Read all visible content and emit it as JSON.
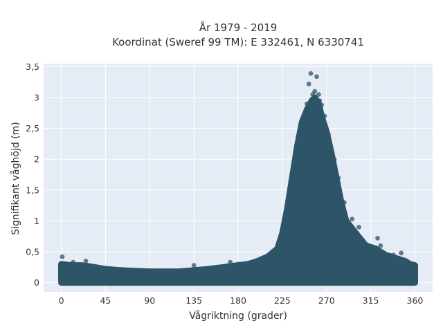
{
  "chart_data": {
    "type": "scatter",
    "title": "År 1979 - 2019",
    "subtitle": "Koordinat (Sweref 99 TM): E 332461, N 6330741",
    "xlabel": "Vågriktning (grader)",
    "ylabel": "Signifikant våghöjd (m)",
    "xlim": [
      -18,
      378
    ],
    "ylim": [
      -0.15,
      3.55
    ],
    "x_ticks": [
      0,
      45,
      90,
      135,
      180,
      225,
      270,
      315,
      360
    ],
    "x_tick_labels": [
      "0",
      "45",
      "90",
      "135",
      "180",
      "225",
      "270",
      "315",
      "360"
    ],
    "y_ticks": [
      0,
      0.5,
      1,
      1.5,
      2,
      2.5,
      3,
      3.5
    ],
    "y_tick_labels": [
      "0",
      "0,5",
      "1",
      "1,5",
      "2",
      "2,5",
      "3",
      "3,5"
    ],
    "grid": true,
    "marker_color": "#2e5468",
    "envelope": {
      "x": [
        0,
        10,
        20,
        30,
        45,
        60,
        75,
        90,
        105,
        120,
        135,
        150,
        165,
        180,
        190,
        200,
        210,
        220,
        225,
        230,
        235,
        240,
        245,
        250,
        255,
        258,
        260,
        262,
        265,
        270,
        275,
        280,
        285,
        290,
        300,
        310,
        320,
        330,
        340,
        350,
        355,
        360
      ],
      "y_max": [
        0.3,
        0.28,
        0.28,
        0.26,
        0.22,
        0.2,
        0.19,
        0.18,
        0.18,
        0.18,
        0.2,
        0.22,
        0.25,
        0.28,
        0.3,
        0.35,
        0.42,
        0.55,
        0.8,
        1.2,
        1.7,
        2.2,
        2.6,
        2.8,
        2.95,
        3.0,
        2.95,
        2.9,
        2.7,
        2.45,
        2.1,
        1.7,
        1.3,
        1.0,
        0.8,
        0.6,
        0.55,
        0.45,
        0.4,
        0.35,
        0.3,
        0.28
      ]
    },
    "points": [
      {
        "x": 1,
        "y": 0.42
      },
      {
        "x": 12,
        "y": 0.33
      },
      {
        "x": 25,
        "y": 0.35
      },
      {
        "x": 135,
        "y": 0.28
      },
      {
        "x": 172,
        "y": 0.33
      },
      {
        "x": 180,
        "y": 0.3
      },
      {
        "x": 242,
        "y": 2.3
      },
      {
        "x": 248,
        "y": 2.6
      },
      {
        "x": 250,
        "y": 2.9
      },
      {
        "x": 252,
        "y": 3.22
      },
      {
        "x": 254,
        "y": 3.39
      },
      {
        "x": 256,
        "y": 3.05
      },
      {
        "x": 258,
        "y": 3.1
      },
      {
        "x": 260,
        "y": 3.34
      },
      {
        "x": 262,
        "y": 3.05
      },
      {
        "x": 263,
        "y": 2.95
      },
      {
        "x": 265,
        "y": 2.88
      },
      {
        "x": 268,
        "y": 2.7
      },
      {
        "x": 272,
        "y": 2.4
      },
      {
        "x": 278,
        "y": 2.0
      },
      {
        "x": 282,
        "y": 1.7
      },
      {
        "x": 288,
        "y": 1.3
      },
      {
        "x": 296,
        "y": 1.03
      },
      {
        "x": 303,
        "y": 0.9
      },
      {
        "x": 322,
        "y": 0.72
      },
      {
        "x": 325,
        "y": 0.6
      },
      {
        "x": 338,
        "y": 0.45
      },
      {
        "x": 346,
        "y": 0.48
      }
    ]
  }
}
